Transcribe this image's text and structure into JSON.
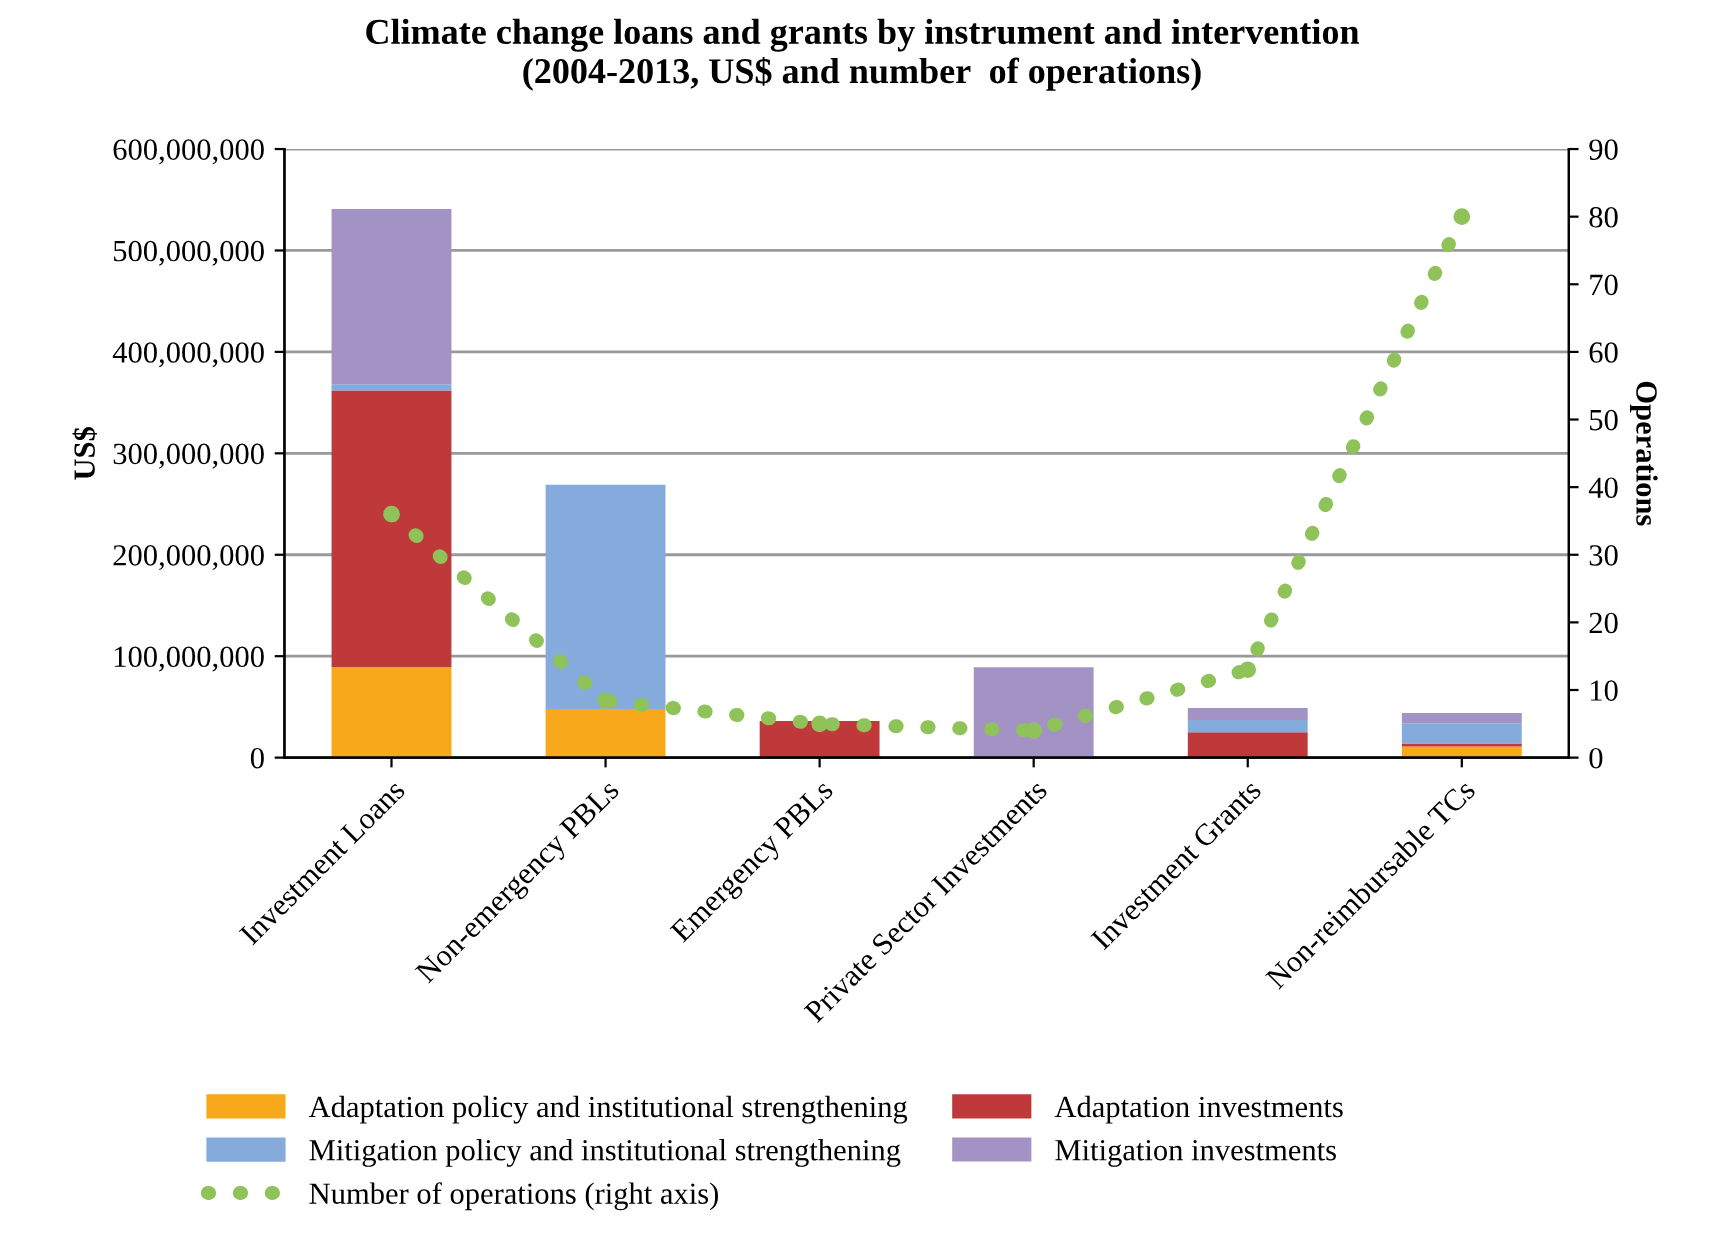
{
  "chart_data": {
    "type": "bar",
    "stacked": true,
    "title": "Climate change loans and grants by instrument and intervention\n(2004-2013, US$ and number  of operations)",
    "ylabel": "US$",
    "y2label": "Operations",
    "categories": [
      "Investment Loans",
      "Non-emergency PBLs",
      "Emergency PBLs",
      "Private Sector Investments",
      "Investment Grants",
      "Non-reimbursable TCs"
    ],
    "series": [
      {
        "name": "Adaptation policy and institutional strengthening",
        "color": "#f7a81b",
        "values": [
          89000000,
          48000000,
          0,
          0,
          null,
          11000000
        ]
      },
      {
        "name": "Adaptation investments",
        "color": "#c0393a",
        "values": [
          273000000,
          0,
          36000000,
          0,
          25000000,
          3000000
        ]
      },
      {
        "name": "Mitigation policy and institutional strengthening",
        "color": "#84abdc",
        "values": [
          6000000,
          221000000,
          0,
          0,
          12000000,
          20000000
        ]
      },
      {
        "name": "Mitigation investments",
        "color": "#a393c4",
        "values": [
          173000000,
          0,
          0,
          89000000,
          12000000,
          10000000
        ]
      },
      {
        "name": "Number of operations (right axis)",
        "type": "line",
        "axis": "y2",
        "line_style": "dotted",
        "marker": "circle",
        "color": "#8fc35a",
        "values": [
          36,
          8.4,
          5,
          4,
          13,
          80
        ]
      }
    ],
    "ylim": [
      0,
      600000000
    ],
    "yticks": [
      {
        "value": 0,
        "label": "0"
      },
      {
        "value": 100000000,
        "label": "100,000,000"
      },
      {
        "value": 200000000,
        "label": "200,000,000"
      },
      {
        "value": 300000000,
        "label": "300,000,000"
      },
      {
        "value": 400000000,
        "label": "400,000,000"
      },
      {
        "value": 500000000,
        "label": "500,000,000"
      },
      {
        "value": 600000000,
        "label": "600,000,000"
      }
    ],
    "y2lim": [
      0,
      90
    ],
    "y2ticks": [
      0,
      10,
      20,
      30,
      40,
      50,
      60,
      70,
      80,
      90
    ],
    "grid": "y",
    "legend": "bottom"
  }
}
